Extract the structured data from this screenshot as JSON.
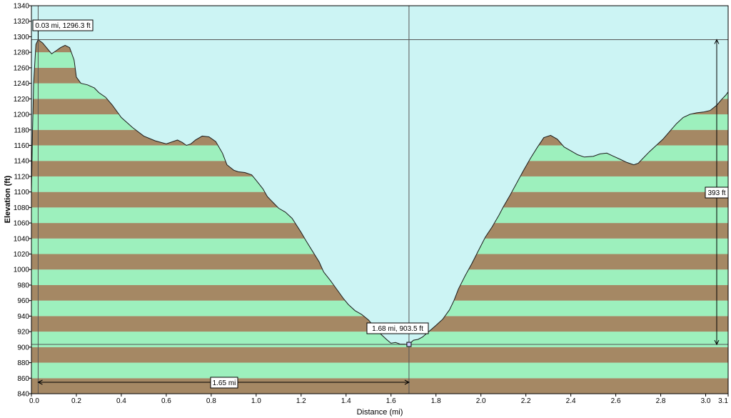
{
  "chart_data": {
    "type": "area",
    "title": "",
    "xlabel": "Distance   (mi)",
    "ylabel": "Elevation (ft)",
    "xlim": [
      0,
      3.1
    ],
    "ylim": [
      840,
      1340
    ],
    "x_ticks": [
      0,
      0.2,
      0.4,
      0.6,
      0.8,
      1.0,
      1.2,
      1.4,
      1.6,
      1.8,
      2.0,
      2.2,
      2.4,
      2.6,
      2.8,
      3.0,
      3.1
    ],
    "x_tick_labels": [
      "0.0",
      "0.2",
      "0.4",
      "0.6",
      "0.8",
      "1.0",
      "1.2",
      "1.4",
      "1.6",
      "1.8",
      "2.0",
      "2.2",
      "2.4",
      "2.6",
      "2.8",
      "3.0",
      "3.1"
    ],
    "y_ticks": [
      840,
      860,
      880,
      900,
      920,
      940,
      960,
      980,
      1000,
      1020,
      1040,
      1060,
      1080,
      1100,
      1120,
      1140,
      1160,
      1180,
      1200,
      1220,
      1240,
      1260,
      1280,
      1300,
      1320,
      1340
    ],
    "series": [
      {
        "x": [
          0.0,
          0.005,
          0.01,
          0.02,
          0.03,
          0.05,
          0.07,
          0.09,
          0.11,
          0.13,
          0.15,
          0.17,
          0.19,
          0.2,
          0.22,
          0.25,
          0.28,
          0.3,
          0.33,
          0.36,
          0.4,
          0.45,
          0.5,
          0.55,
          0.6,
          0.65,
          0.67,
          0.69,
          0.71,
          0.73,
          0.76,
          0.79,
          0.82,
          0.85,
          0.87,
          0.9,
          0.92,
          0.95,
          0.98,
          1.0,
          1.03,
          1.05,
          1.08,
          1.1,
          1.13,
          1.16,
          1.2,
          1.22,
          1.25,
          1.28,
          1.3,
          1.33,
          1.36,
          1.39,
          1.41,
          1.44,
          1.47,
          1.5,
          1.52,
          1.55,
          1.58,
          1.6,
          1.62,
          1.64,
          1.66,
          1.68,
          1.7,
          1.72,
          1.74,
          1.76,
          1.78,
          1.8,
          1.83,
          1.86,
          1.88,
          1.9,
          1.93,
          1.96,
          1.99,
          2.02,
          2.05,
          2.08,
          2.1,
          2.13,
          2.16,
          2.19,
          2.22,
          2.25,
          2.28,
          2.31,
          2.34,
          2.37,
          2.4,
          2.43,
          2.46,
          2.5,
          2.53,
          2.56,
          2.59,
          2.62,
          2.65,
          2.68,
          2.7,
          2.72,
          2.75,
          2.78,
          2.81,
          2.84,
          2.87,
          2.9,
          2.93,
          2.96,
          2.99,
          3.02,
          3.05,
          3.07,
          3.09,
          3.1
        ],
        "y": [
          1100,
          1180,
          1240,
          1290,
          1296.3,
          1292,
          1285,
          1278,
          1282,
          1286,
          1289,
          1286,
          1270,
          1248,
          1240,
          1238,
          1234,
          1228,
          1222,
          1212,
          1196,
          1183,
          1172,
          1166,
          1162,
          1167,
          1164,
          1160,
          1162,
          1167,
          1172,
          1171,
          1165,
          1150,
          1135,
          1128,
          1126,
          1125,
          1122,
          1115,
          1104,
          1094,
          1085,
          1079,
          1074,
          1066,
          1048,
          1038,
          1024,
          1010,
          997,
          986,
          974,
          962,
          955,
          947,
          942,
          935,
          928,
          918,
          910,
          905,
          906,
          904,
          904,
          903.5,
          909,
          910,
          913,
          918,
          923,
          928,
          936,
          948,
          960,
          975,
          992,
          1008,
          1025,
          1042,
          1055,
          1070,
          1081,
          1096,
          1112,
          1128,
          1143,
          1157,
          1170,
          1173,
          1168,
          1158,
          1153,
          1148,
          1145,
          1146,
          1149,
          1150,
          1146,
          1142,
          1138,
          1135,
          1137,
          1143,
          1152,
          1160,
          1168,
          1178,
          1188,
          1196,
          1200,
          1202,
          1203,
          1205,
          1212,
          1219,
          1225,
          1229
        ]
      }
    ],
    "band_height_ft": 20,
    "band_colors": [
      "#a58864",
      "#9df0bd"
    ],
    "background_color": "#ccf4f4",
    "annotations": {
      "max_label": "0.03 mi, 1296.3 ft",
      "max_point": {
        "x": 0.03,
        "y": 1296.3
      },
      "min_label": "1.68 mi, 903.5 ft",
      "min_point": {
        "x": 1.68,
        "y": 903.5
      },
      "distance_label": "1.65 mi",
      "elevation_diff_label": "393 ft"
    }
  }
}
